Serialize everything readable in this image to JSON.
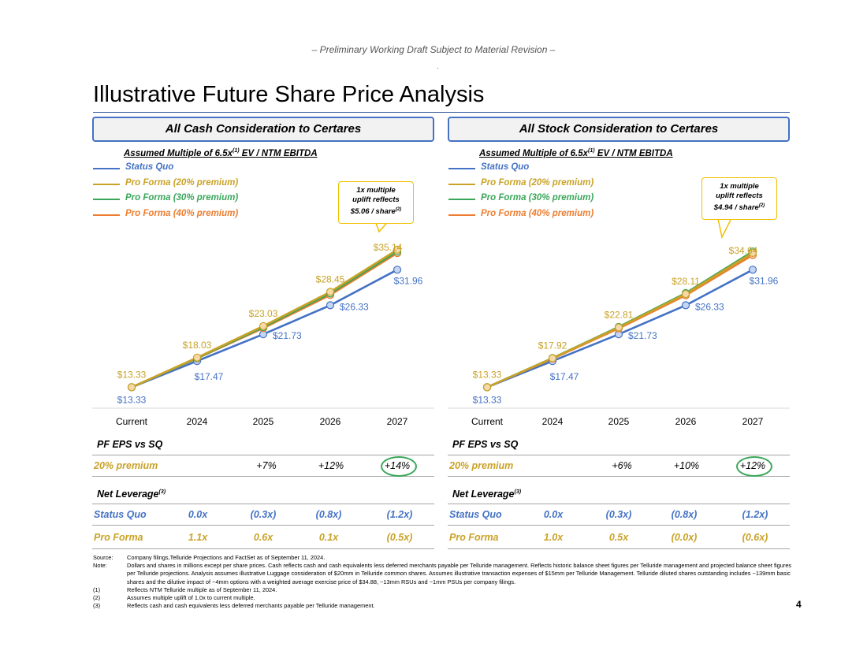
{
  "draft_banner": "– Preliminary Working Draft Subject to Material Revision –",
  "title": "Illustrative Future Share Price Analysis",
  "page_number": "4",
  "colors": {
    "status_quo": "#4472c4",
    "pf20": "#c9a227",
    "pf30": "#3aa65a",
    "pf40": "#ed7d31",
    "header_border": "#4472c4",
    "callout_border": "#f0c000"
  },
  "panels": [
    {
      "header": "All Cash Consideration to Certares",
      "multiple_label": "Assumed Multiple of 6.5x",
      "multiple_sup": "(1)",
      "multiple_suffix": " EV / NTM EBITDA",
      "legend": [
        "Status Quo",
        "Pro Forma (20% premium)",
        "Pro Forma (30% premium)",
        "Pro Forma (40% premium)"
      ],
      "callout": {
        "line1": "1x multiple",
        "line2": "uplift reflects",
        "line3": "$5.06 / share",
        "sup": "(2)"
      },
      "eps_title": "PF EPS vs SQ",
      "eps_row": {
        "label": "20% premium",
        "values": [
          "",
          "",
          "+7%",
          "+12%",
          "+14%"
        ]
      },
      "lev_title": "Net Leverage",
      "lev_sup": "(3)",
      "lev_rows": [
        {
          "label": "Status Quo",
          "values": [
            "0.0x",
            "(0.3x)",
            "(0.8x)",
            "(1.2x)"
          ]
        },
        {
          "label": "Pro Forma",
          "values": [
            "1.1x",
            "0.6x",
            "0.1x",
            "(0.5x)"
          ]
        }
      ]
    },
    {
      "header": "All Stock Consideration to Certares",
      "multiple_label": "Assumed Multiple of 6.5x",
      "multiple_sup": "(1)",
      "multiple_suffix": " EV / NTM EBITDA",
      "legend": [
        "Status Quo",
        "Pro Forma (20% premium)",
        "Pro Forma (30% premium)",
        "Pro Forma (40% premium)"
      ],
      "callout": {
        "line1": "1x multiple",
        "line2": "uplift reflects",
        "line3": "$4.94 / share",
        "sup": "(2)"
      },
      "eps_title": "PF EPS vs SQ",
      "eps_row": {
        "label": "20% premium",
        "values": [
          "",
          "",
          "+6%",
          "+10%",
          "+12%"
        ]
      },
      "lev_title": "Net Leverage",
      "lev_sup": "(3)",
      "lev_rows": [
        {
          "label": "Status Quo",
          "values": [
            "0.0x",
            "(0.3x)",
            "(0.8x)",
            "(1.2x)"
          ]
        },
        {
          "label": "Pro Forma",
          "values": [
            "1.0x",
            "0.5x",
            "(0.0x)",
            "(0.6x)"
          ]
        }
      ]
    }
  ],
  "chart_data": [
    {
      "type": "line",
      "title": "All Cash Consideration to Certares",
      "categories": [
        "Current",
        "2024",
        "2025",
        "2026",
        "2027"
      ],
      "ylim": [
        12,
        37
      ],
      "series": [
        {
          "name": "Status Quo",
          "values": [
            13.33,
            17.47,
            21.73,
            26.33,
            31.96
          ],
          "labels": [
            "$13.33",
            "$17.47",
            "$21.73",
            "$26.33",
            "$31.96"
          ]
        },
        {
          "name": "Pro Forma (20% premium)",
          "values": [
            13.33,
            18.03,
            23.03,
            28.45,
            35.14
          ],
          "labels": [
            "$13.33",
            "$18.03",
            "$23.03",
            "$28.45",
            "$35.14"
          ]
        },
        {
          "name": "Pro Forma (30% premium)",
          "values": [
            13.33,
            17.95,
            22.85,
            28.2,
            34.85
          ]
        },
        {
          "name": "Pro Forma (40% premium)",
          "values": [
            13.33,
            17.9,
            22.7,
            27.95,
            34.6
          ]
        }
      ]
    },
    {
      "type": "line",
      "title": "All Stock Consideration to Certares",
      "categories": [
        "Current",
        "2024",
        "2025",
        "2026",
        "2027"
      ],
      "ylim": [
        12,
        37
      ],
      "series": [
        {
          "name": "Status Quo",
          "values": [
            13.33,
            17.47,
            21.73,
            26.33,
            31.96
          ],
          "labels": [
            "$13.33",
            "$17.47",
            "$21.73",
            "$26.33",
            "$31.96"
          ]
        },
        {
          "name": "Pro Forma (20% premium)",
          "values": [
            13.33,
            17.92,
            22.81,
            28.11,
            34.64
          ],
          "labels": [
            "$13.33",
            "$17.92",
            "$22.81",
            "$28.11",
            "$34.64"
          ]
        },
        {
          "name": "Pro Forma (30% premium)",
          "values": [
            13.33,
            17.95,
            22.9,
            28.25,
            34.85
          ]
        },
        {
          "name": "Pro Forma (40% premium)",
          "values": [
            13.33,
            17.85,
            22.65,
            27.9,
            34.3
          ]
        }
      ]
    }
  ],
  "notes": [
    {
      "key": "Source:",
      "text": "Company filings,Telluride Projections and FactSet as of September 11, 2024."
    },
    {
      "key": "Note:",
      "text": "Dollars and shares in millions except per share prices. Cash reflects cash and cash equivalents less deferred merchants payable per Telluride management. Reflects historic balance sheet figures per Telluride management and projected balance sheet figures per Telluride projections. Analysis assumes illustrative Luggage consideration of $20mm in Telluride common shares. Assumes illustrative transaction expenses of $15mm per Telluride Management. Telluride diluted shares outstanding includes ~139mm basic shares and the dilutive impact of ~4mm options with a weighted average exercise price of $34.88, ~13mm RSUs and ~1mm PSUs per company filings."
    },
    {
      "key": "(1)",
      "text": "Reflects NTM Telluride multiple as of September 11, 2024."
    },
    {
      "key": "(2)",
      "text": "Assumes multiple uplift of 1.0x to current multiple."
    },
    {
      "key": "(3)",
      "text": "Reflects cash and cash equivalents less deferred merchants payable per Telluride management."
    }
  ]
}
